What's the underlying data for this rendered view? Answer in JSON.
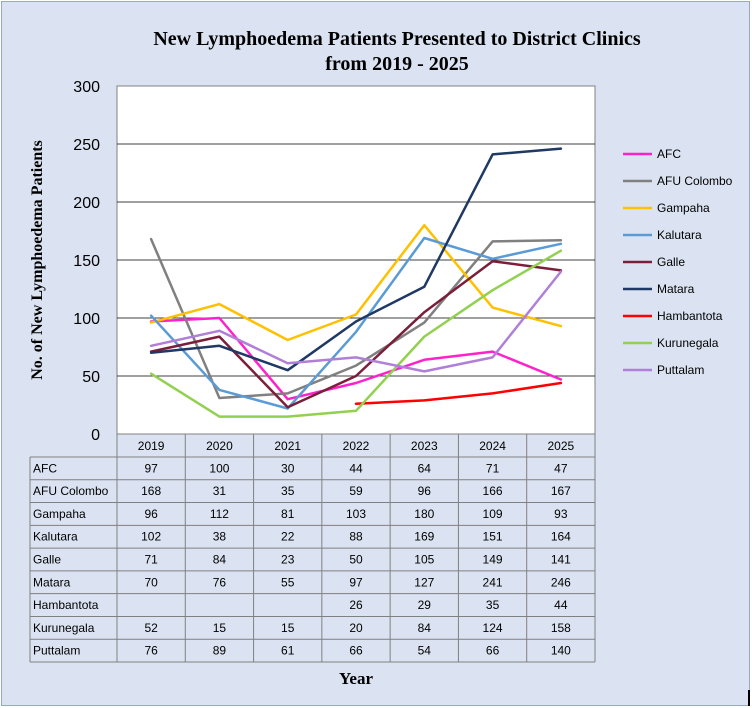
{
  "chart_data": {
    "type": "line",
    "title_line1": "New Lymphoedema  Patients Presented to District Clinics",
    "title_line2": "from 2019  - 2025",
    "ylabel": "No. of New Lymphoedema  Patients",
    "xlabel": "Year",
    "ylim": [
      0,
      300
    ],
    "yticks": [
      "0",
      "50",
      "100",
      "150",
      "200",
      "250",
      "300"
    ],
    "categories": [
      "2019",
      "2020",
      "2021",
      "2022",
      "2023",
      "2024",
      "2025"
    ],
    "grid": true,
    "legend_position": "right",
    "series": [
      {
        "name": "AFC",
        "color": "#ff22cc",
        "values": [
          97,
          100,
          30,
          44,
          64,
          71,
          47
        ]
      },
      {
        "name": "AFU Colombo",
        "color": "#808080",
        "values": [
          168,
          31,
          35,
          59,
          96,
          166,
          167
        ]
      },
      {
        "name": "Gampaha",
        "color": "#ffc000",
        "values": [
          96,
          112,
          81,
          103,
          180,
          109,
          93
        ]
      },
      {
        "name": "Kalutara",
        "color": "#5b9bd5",
        "values": [
          102,
          38,
          22,
          88,
          169,
          151,
          164
        ]
      },
      {
        "name": "Galle",
        "color": "#7b1e3a",
        "values": [
          71,
          84,
          23,
          50,
          105,
          149,
          141
        ]
      },
      {
        "name": "Matara",
        "color": "#1f3864",
        "values": [
          70,
          76,
          55,
          97,
          127,
          241,
          246
        ]
      },
      {
        "name": "Hambantota",
        "color": "#ff0000",
        "values": [
          null,
          null,
          null,
          26,
          29,
          35,
          44
        ]
      },
      {
        "name": "Kurunegala",
        "color": "#92d050",
        "values": [
          52,
          15,
          15,
          20,
          84,
          124,
          158
        ]
      },
      {
        "name": "Puttalam",
        "color": "#b07fd8",
        "values": [
          76,
          89,
          61,
          66,
          54,
          66,
          140
        ]
      }
    ],
    "table": {
      "rows": [
        {
          "label": "AFC",
          "cells": [
            "97",
            "100",
            "30",
            "44",
            "64",
            "71",
            "47"
          ]
        },
        {
          "label": "AFU Colombo",
          "cells": [
            "168",
            "31",
            "35",
            "59",
            "96",
            "166",
            "167"
          ]
        },
        {
          "label": "Gampaha",
          "cells": [
            "96",
            "112",
            "81",
            "103",
            "180",
            "109",
            "93"
          ]
        },
        {
          "label": "Kalutara",
          "cells": [
            "102",
            "38",
            "22",
            "88",
            "169",
            "151",
            "164"
          ]
        },
        {
          "label": "Galle",
          "cells": [
            "71",
            "84",
            "23",
            "50",
            "105",
            "149",
            "141"
          ]
        },
        {
          "label": "Matara",
          "cells": [
            "70",
            "76",
            "55",
            "97",
            "127",
            "241",
            "246"
          ]
        },
        {
          "label": "Hambantota",
          "cells": [
            "",
            "",
            "",
            "26",
            "29",
            "35",
            "44"
          ]
        },
        {
          "label": "Kurunegala",
          "cells": [
            "52",
            "15",
            "15",
            "20",
            "84",
            "124",
            "158"
          ]
        },
        {
          "label": "Puttalam",
          "cells": [
            "76",
            "89",
            "61",
            "66",
            "54",
            "66",
            "140"
          ]
        }
      ]
    }
  }
}
